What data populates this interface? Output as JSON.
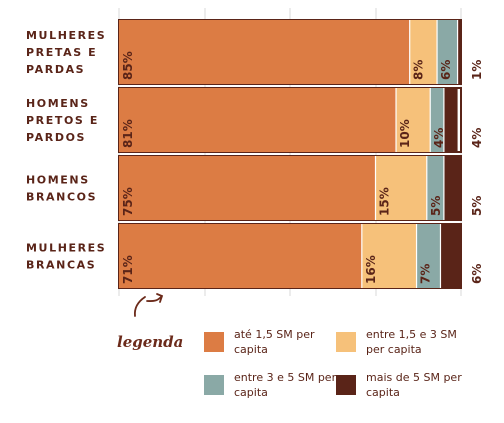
{
  "chart_data": {
    "type": "bar",
    "orientation": "horizontal",
    "stacked": true,
    "normalized": true,
    "categories": [
      [
        "MULHERES",
        "PRETAS E",
        "PARDAS"
      ],
      [
        "HOMENS",
        "PRETOS E",
        "PARDOS"
      ],
      [
        "HOMENS",
        "BRANCOS"
      ],
      [
        "MULHERES",
        "BRANCAS"
      ]
    ],
    "series": [
      {
        "name": "até 1,5 SM per capita",
        "color": "#dc7c44",
        "values": [
          85,
          81,
          75,
          71
        ],
        "labels": [
          "85%",
          "81%",
          "75%",
          "71%"
        ]
      },
      {
        "name": "entre 1,5 e 3 SM per capita",
        "color": "#f6c17a",
        "values": [
          8,
          10,
          15,
          16
        ],
        "labels": [
          "8%",
          "10%",
          "15%",
          "16%"
        ]
      },
      {
        "name": "entre 3 e 5 SM per capita",
        "color": "#8aa9a6",
        "values": [
          6,
          4,
          5,
          7
        ],
        "labels": [
          "6%",
          "4%",
          "5%",
          "7%"
        ]
      },
      {
        "name": "mais de 5 SM per capita",
        "color": "#5a2418",
        "values": [
          1,
          4,
          5,
          6
        ],
        "labels": [
          "1%",
          "4%",
          "5%",
          "6%"
        ]
      }
    ],
    "xlim": [
      0,
      100
    ],
    "grid": true,
    "legend_title": "legenda",
    "legend_position": "bottom"
  }
}
